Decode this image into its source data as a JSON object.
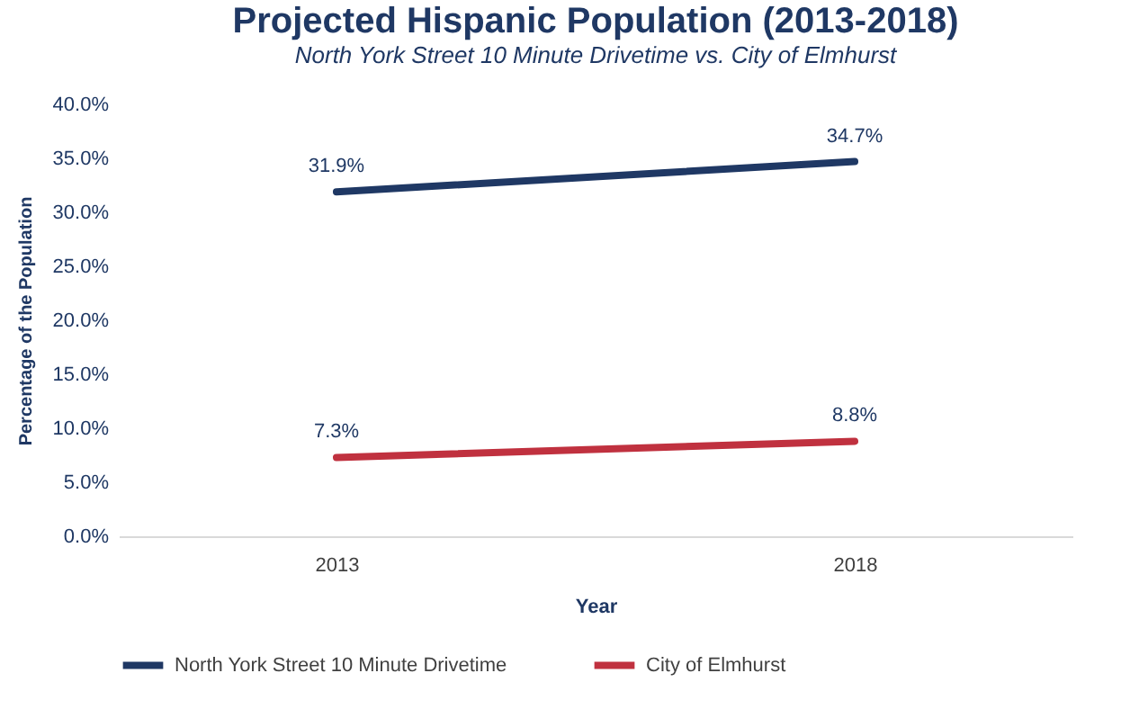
{
  "chart_data": {
    "type": "line",
    "title": "Projected Hispanic Population (2013-2018)",
    "subtitle": "North York Street 10 Minute Drivetime vs. City of Elmhurst",
    "xlabel": "Year",
    "ylabel": "Percentage of the Population",
    "categories": [
      "2013",
      "2018"
    ],
    "series": [
      {
        "name": "North York Street 10 Minute Drivetime",
        "color": "#1f3864",
        "values": [
          31.9,
          34.7
        ],
        "value_labels": [
          "31.9%",
          "34.7%"
        ]
      },
      {
        "name": "City of Elmhurst",
        "color": "#c0313f",
        "values": [
          7.3,
          8.8
        ],
        "value_labels": [
          "7.3%",
          "8.8%"
        ]
      }
    ],
    "ylim": [
      0,
      40
    ],
    "yticks": [
      {
        "value": 0,
        "label": "0.0%"
      },
      {
        "value": 5,
        "label": "5.0%"
      },
      {
        "value": 10,
        "label": "10.0%"
      },
      {
        "value": 15,
        "label": "15.0%"
      },
      {
        "value": 20,
        "label": "20.0%"
      },
      {
        "value": 25,
        "label": "25.0%"
      },
      {
        "value": 30,
        "label": "30.0%"
      },
      {
        "value": 35,
        "label": "35.0%"
      },
      {
        "value": 40,
        "label": "40.0%"
      }
    ],
    "grid": false,
    "legend": "bottom"
  }
}
